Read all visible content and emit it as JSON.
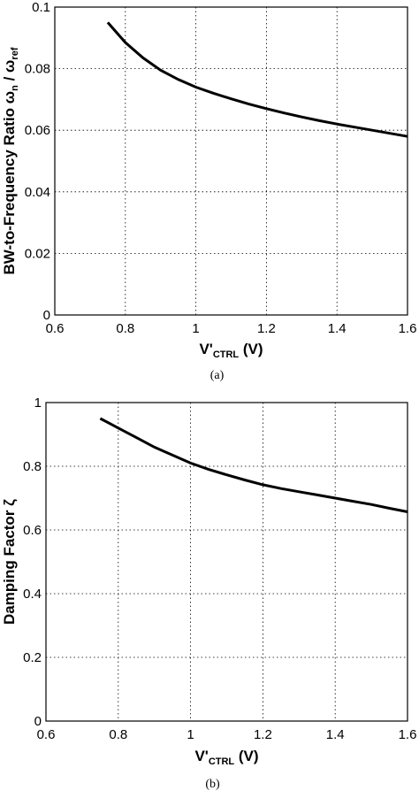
{
  "chart_data": [
    {
      "type": "line",
      "caption": "(a)",
      "xlabel": {
        "main": "V'",
        "sub": "CTRL",
        "unit": " (V)"
      },
      "ylabel": {
        "prefix": "BW-to-Frequency Ratio ω",
        "sub1": "n",
        "mid": " / ω",
        "sub2": "ref"
      },
      "xlim": [
        0.6,
        1.6
      ],
      "ylim": [
        0,
        0.1
      ],
      "xticks": [
        "0.6",
        "0.8",
        "1",
        "1.2",
        "1.4",
        "1.6"
      ],
      "yticks": [
        "0",
        "0.02",
        "0.04",
        "0.06",
        "0.08",
        "0.1"
      ],
      "grid": true,
      "series": [
        {
          "x": [
            0.75,
            0.8,
            0.85,
            0.9,
            0.95,
            1.0,
            1.05,
            1.1,
            1.15,
            1.2,
            1.25,
            1.3,
            1.35,
            1.4,
            1.45,
            1.5,
            1.55,
            1.6
          ],
          "y": [
            0.095,
            0.0885,
            0.0835,
            0.0795,
            0.0765,
            0.074,
            0.072,
            0.0702,
            0.0685,
            0.067,
            0.0656,
            0.0643,
            0.0631,
            0.062,
            0.061,
            0.06,
            0.059,
            0.058
          ]
        }
      ]
    },
    {
      "type": "line",
      "caption": "(b)",
      "xlabel": {
        "main": "V'",
        "sub": "CTRL",
        "unit": " (V)"
      },
      "ylabel": {
        "prefix": "Damping Factor ζ",
        "sub1": "",
        "mid": "",
        "sub2": ""
      },
      "xlim": [
        0.6,
        1.6
      ],
      "ylim": [
        0,
        1
      ],
      "xticks": [
        "0.6",
        "0.8",
        "1",
        "1.2",
        "1.4",
        "1.6"
      ],
      "yticks": [
        "0",
        "0.2",
        "0.4",
        "0.6",
        "0.8",
        "1"
      ],
      "grid": true,
      "series": [
        {
          "x": [
            0.75,
            0.8,
            0.85,
            0.9,
            0.95,
            1.0,
            1.05,
            1.1,
            1.15,
            1.2,
            1.25,
            1.3,
            1.35,
            1.4,
            1.45,
            1.5,
            1.55,
            1.6
          ],
          "y": [
            0.95,
            0.92,
            0.89,
            0.86,
            0.835,
            0.81,
            0.79,
            0.773,
            0.757,
            0.742,
            0.73,
            0.72,
            0.71,
            0.7,
            0.69,
            0.68,
            0.668,
            0.657
          ]
        }
      ]
    }
  ]
}
